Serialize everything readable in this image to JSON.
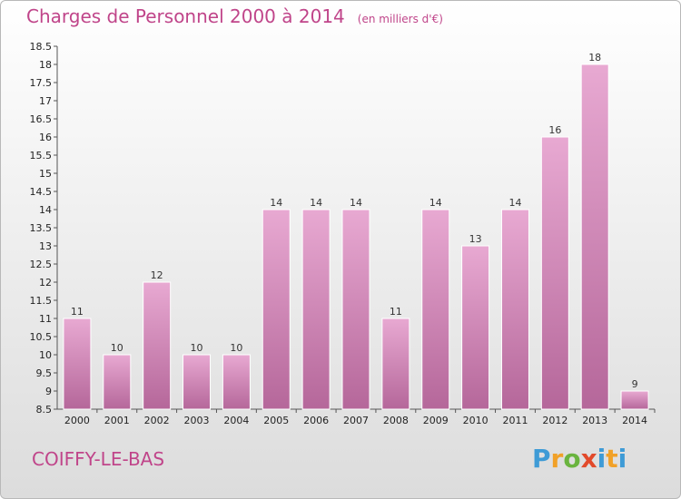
{
  "header": {
    "title": "Charges de Personnel 2000 à 2014",
    "unit": "(en milliers d'€)"
  },
  "footer": {
    "commune": "COIFFY-LE-BAS",
    "logo": [
      "P",
      "r",
      "o",
      "x",
      "i",
      "t",
      "i"
    ]
  },
  "colors": {
    "title": "#c0458a",
    "bar_top": "#e8a9d2",
    "bar_bottom": "#b5679a"
  },
  "chart_data": {
    "type": "bar",
    "title": "Charges de Personnel 2000 à 2014",
    "subtitle": "(en milliers d'€)",
    "categories": [
      "2000",
      "2001",
      "2002",
      "2003",
      "2004",
      "2005",
      "2006",
      "2007",
      "2008",
      "2009",
      "2010",
      "2011",
      "2012",
      "2013",
      "2014"
    ],
    "values": [
      11,
      10,
      12,
      10,
      10,
      14,
      14,
      14,
      11,
      14,
      13,
      14,
      16,
      18,
      9
    ],
    "data_labels": [
      "11",
      "10",
      "12",
      "10",
      "10",
      "14",
      "14",
      "14",
      "11",
      "14",
      "13",
      "14",
      "16",
      "18",
      "9"
    ],
    "ylim": [
      8.5,
      18.5
    ],
    "yticks": [
      "8.5",
      "9",
      "9.5",
      "10",
      "10.5",
      "11",
      "11.5",
      "12",
      "12.5",
      "13",
      "13.5",
      "14",
      "14.5",
      "15",
      "15.5",
      "16",
      "16.5",
      "17",
      "17.5",
      "18",
      "18.5"
    ],
    "grid": false,
    "legend": "none"
  }
}
